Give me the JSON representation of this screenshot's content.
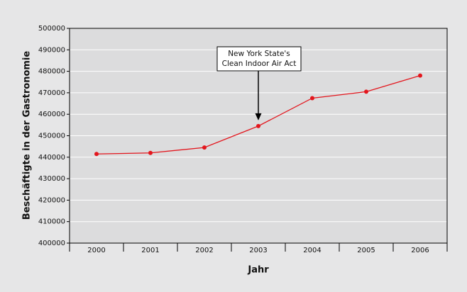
{
  "chart_data": {
    "type": "line",
    "categories": [
      "2000",
      "2001",
      "2002",
      "2003",
      "2004",
      "2005",
      "2006"
    ],
    "series": [
      {
        "name": null,
        "color": "#e3161d",
        "values": [
          441500,
          442000,
          444500,
          454500,
          467500,
          470500,
          478000
        ]
      }
    ],
    "ylim": [
      400000,
      500000
    ],
    "yticks": [
      400000,
      410000,
      420000,
      430000,
      440000,
      450000,
      460000,
      470000,
      480000,
      490000,
      500000
    ],
    "grid": true,
    "xlabel": "Jahr",
    "ylabel": "Beschäftigte in der Gastronomie",
    "annotation": {
      "lines": [
        "New York State's",
        "Clean Indoor Air Act"
      ],
      "category": "2003"
    }
  }
}
